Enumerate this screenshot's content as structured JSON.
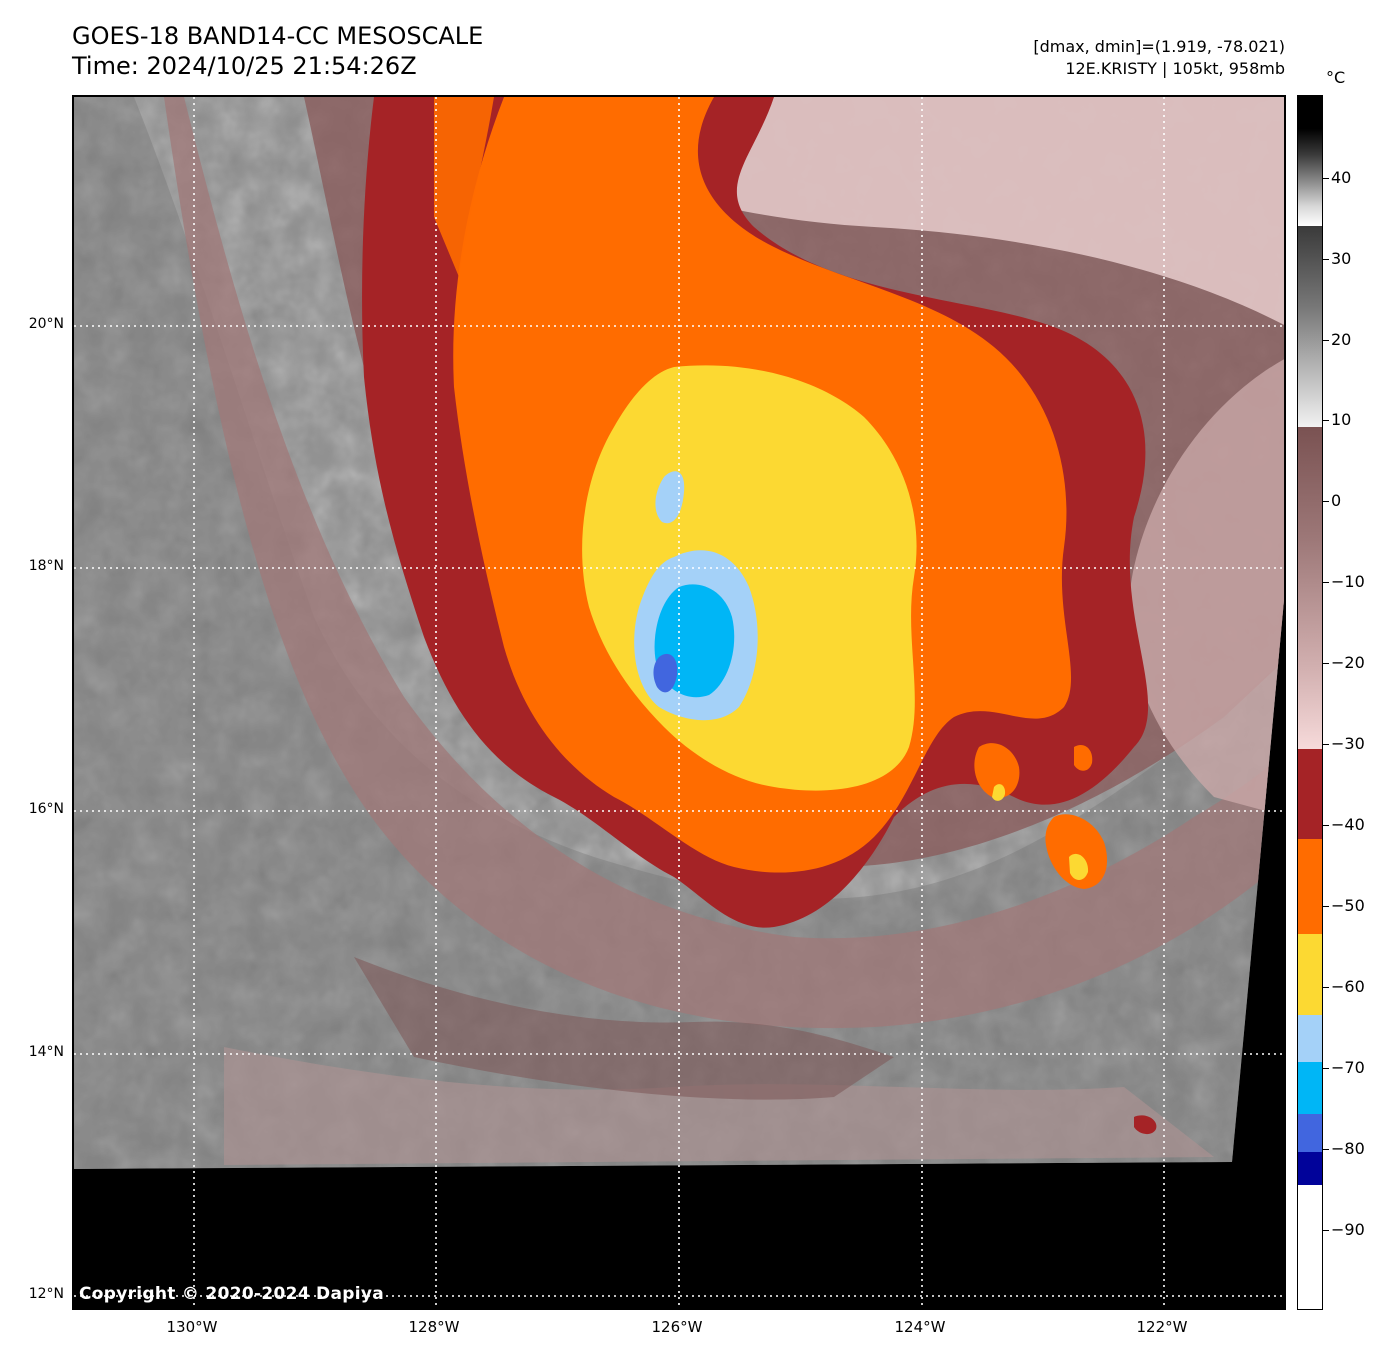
{
  "header": {
    "title_line1": "GOES-18 BAND14-CC MESOSCALE",
    "title_line2": "Time: 2024/10/25 21:54:26Z",
    "stats_line": "[dmax, dmin]=(1.919, -78.021)",
    "storm_line": "12E.KRISTY | 105kt, 958mb"
  },
  "map": {
    "copyright": "Copyright © 2020-2024 Dapiya",
    "lat_labels": [
      "20°N",
      "18°N",
      "16°N",
      "14°N",
      "12°N"
    ],
    "lon_labels": [
      "130°W",
      "128°W",
      "126°W",
      "124°W",
      "122°W"
    ]
  },
  "colorbar": {
    "unit": "°C",
    "tick_labels": [
      "40",
      "30",
      "20",
      "10",
      "0",
      "−10",
      "−20",
      "−30",
      "−40",
      "−50",
      "−60",
      "−70",
      "−80",
      "−90"
    ],
    "palette": {
      "dark_red": "#a52326",
      "orange": "#ff6c00",
      "yellow": "#fcd932",
      "light_blue": "#a4d1f8",
      "cyan": "#00b6f6",
      "blue": "#4166df",
      "navy": "#01039a",
      "warm_brown": "#7a5252",
      "pink": "#f6dada"
    }
  }
}
